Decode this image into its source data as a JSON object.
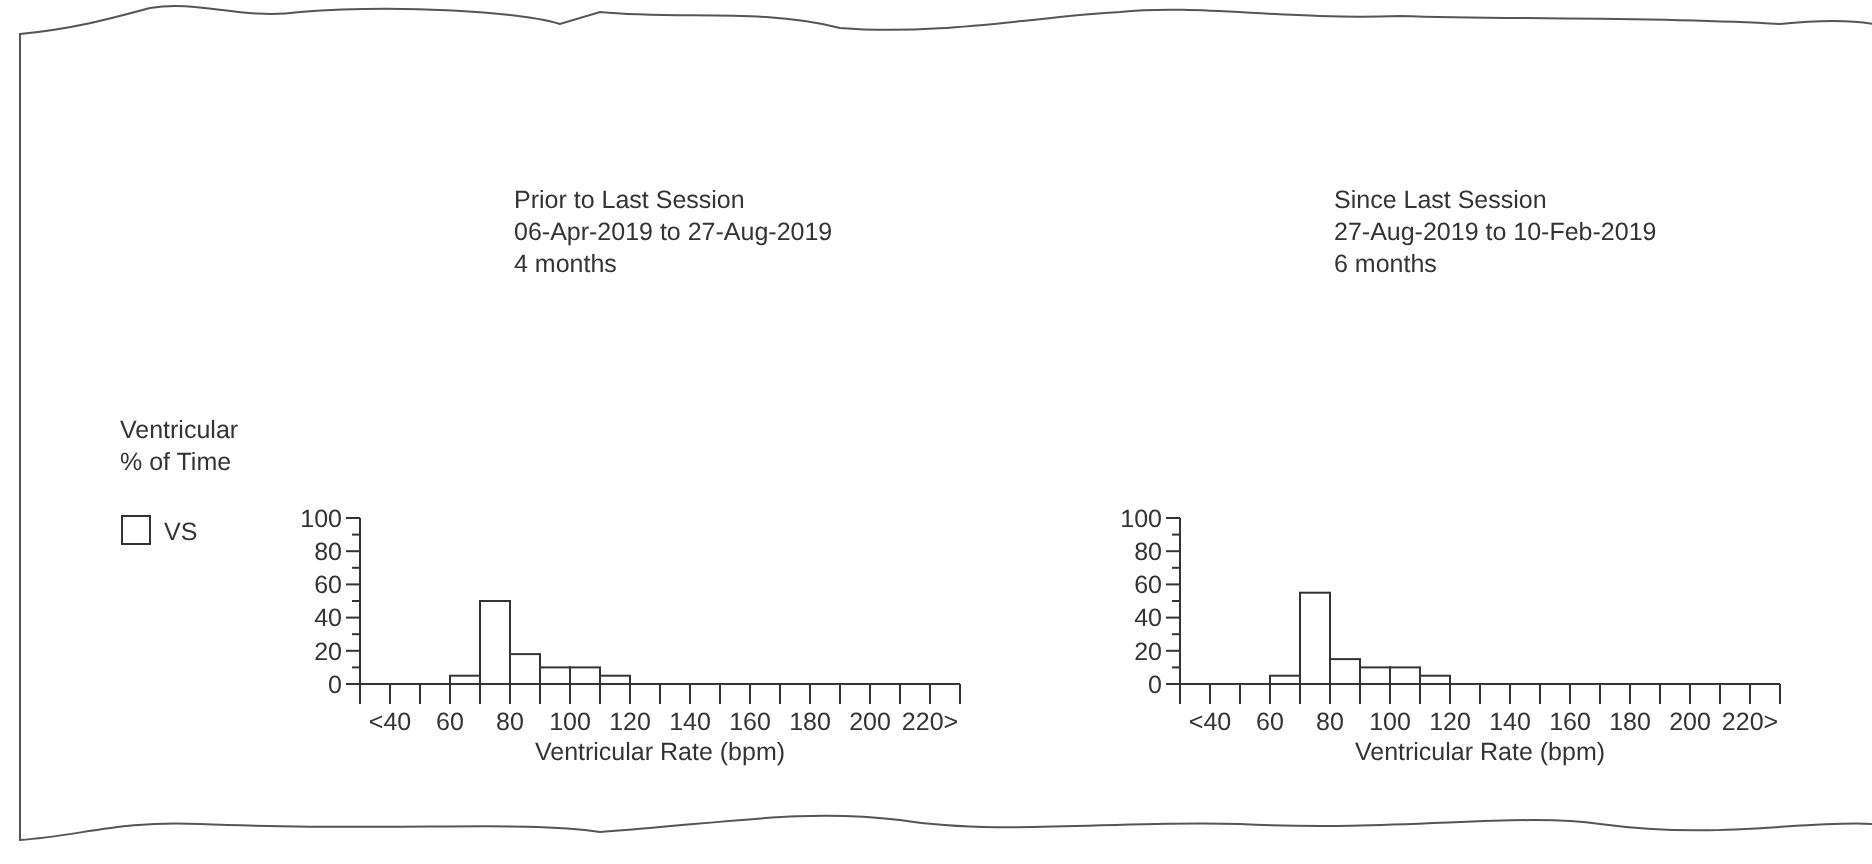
{
  "chart_data": [
    {
      "type": "histogram",
      "title": "Prior to Last Session",
      "subtitle": "06-Apr-2019 to 27-Aug-2019",
      "annotations": [
        "4 months"
      ],
      "ylabel": "Ventricular\n% of Time",
      "xlabel": "Ventricular Rate (bpm)",
      "legend": "left",
      "bins": [
        30,
        40,
        50,
        60,
        70,
        80,
        90,
        100,
        110,
        120,
        130,
        140,
        150,
        160,
        170,
        180,
        190,
        200,
        210,
        220,
        230
      ],
      "series": [
        {
          "name": "VS",
          "color": "#ffffff",
          "values": [
            0,
            0,
            0,
            5,
            50,
            18,
            10,
            10,
            5,
            0,
            0,
            0,
            0,
            0,
            0,
            0,
            0,
            0,
            0,
            0
          ]
        }
      ],
      "xlim": [
        30,
        230
      ],
      "ylim": [
        0,
        100
      ],
      "xticks": [
        {
          "value": 30,
          "label": null
        },
        {
          "value": 40,
          "label": "<40"
        },
        {
          "value": 50,
          "label": null
        },
        60,
        {
          "value": 70,
          "label": null
        },
        80,
        {
          "value": 90,
          "label": null
        },
        100,
        {
          "value": 110,
          "label": null
        },
        120,
        {
          "value": 130,
          "label": null
        },
        140,
        {
          "value": 150,
          "label": null
        },
        160,
        {
          "value": 170,
          "label": null
        },
        180,
        {
          "value": 190,
          "label": null
        },
        200,
        {
          "value": 210,
          "label": null
        },
        {
          "value": 220,
          "label": "220>"
        },
        {
          "value": 230,
          "label": null
        }
      ],
      "yticks": [
        0,
        {
          "value": 10,
          "label": null
        },
        20,
        {
          "value": 30,
          "label": null
        },
        40,
        {
          "value": 50,
          "label": null
        },
        60,
        {
          "value": 70,
          "label": null
        },
        80,
        {
          "value": 90,
          "label": null
        },
        100
      ],
      "grid": false
    },
    {
      "type": "histogram",
      "title": "Since Last Session",
      "subtitle": "27-Aug-2019 to 10-Feb-2019",
      "annotations": [
        "6 months"
      ],
      "xlabel": "Ventricular Rate (bpm)",
      "bins": [
        30,
        40,
        50,
        60,
        70,
        80,
        90,
        100,
        110,
        120,
        130,
        140,
        150,
        160,
        170,
        180,
        190,
        200,
        210,
        220,
        230
      ],
      "series": [
        {
          "color": "#ffffff",
          "values": [
            0,
            0,
            0,
            5,
            55,
            15,
            10,
            10,
            5,
            0,
            0,
            0,
            0,
            0,
            0,
            0,
            0,
            0,
            0,
            0
          ]
        }
      ],
      "xlim": [
        30,
        230
      ],
      "ylim": [
        0,
        100
      ],
      "xticks": [
        {
          "value": 30,
          "label": null
        },
        {
          "value": 40,
          "label": "<40"
        },
        {
          "value": 50,
          "label": null
        },
        60,
        {
          "value": 70,
          "label": null
        },
        80,
        {
          "value": 90,
          "label": null
        },
        100,
        {
          "value": 110,
          "label": null
        },
        120,
        {
          "value": 130,
          "label": null
        },
        140,
        {
          "value": 150,
          "label": null
        },
        160,
        {
          "value": 170,
          "label": null
        },
        180,
        {
          "value": 190,
          "label": null
        },
        200,
        {
          "value": 210,
          "label": null
        },
        {
          "value": 220,
          "label": "220>"
        },
        {
          "value": 230,
          "label": null
        }
      ],
      "yticks": [
        0,
        {
          "value": 10,
          "label": null
        },
        20,
        {
          "value": 30,
          "label": null
        },
        40,
        {
          "value": 50,
          "label": null
        },
        60,
        {
          "value": 70,
          "label": null
        },
        80,
        {
          "value": 90,
          "label": null
        },
        100
      ],
      "grid": false
    }
  ]
}
